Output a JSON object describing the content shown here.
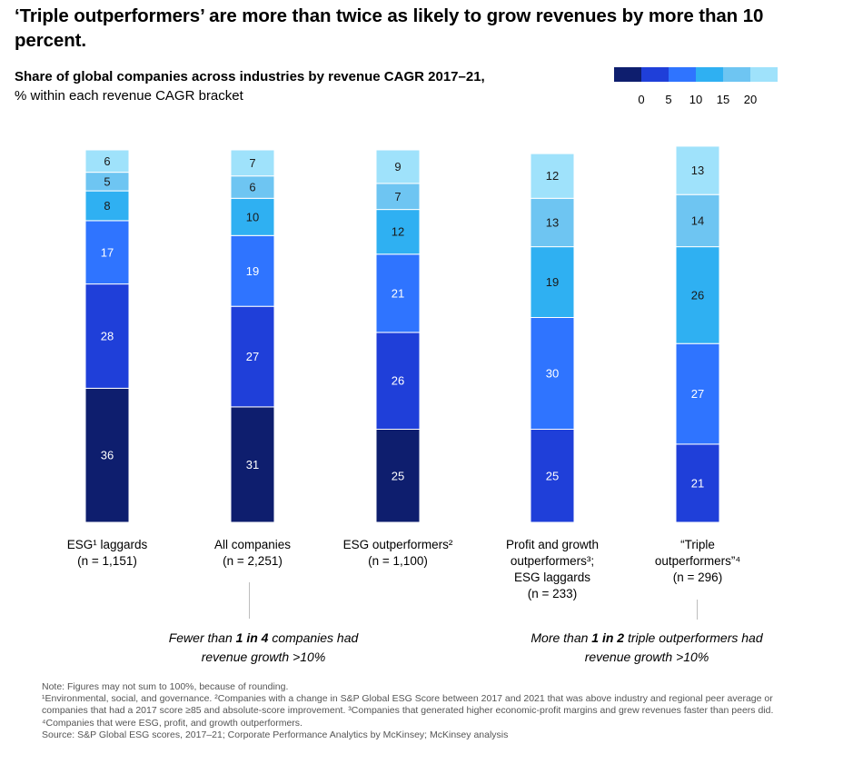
{
  "headline": "‘Triple outperformers’ are more than twice as likely to grow revenues by more than 10 percent.",
  "subtitle": {
    "bold": "Share of global companies across industries by revenue CAGR 2017–21,",
    "rest": " % within each revenue CAGR bracket"
  },
  "colors": {
    "legend": [
      "#0e1e6e",
      "#1f3fd9",
      "#2f74ff",
      "#2fb0f2",
      "#6ec5f2",
      "#9fe2fb"
    ],
    "segment_text_dark": "#1a1a1a",
    "segment_text_light": "#ffffff"
  },
  "legend": {
    "ticks": [
      "0",
      "5",
      "10",
      "15",
      "20"
    ]
  },
  "chart_data": {
    "type": "bar",
    "stacked": true,
    "orientation": "vertical",
    "title": "Share of global companies across industries by revenue CAGR 2017–21, % within each revenue CAGR bracket",
    "segment_order": "bottom-to-top by revenue CAGR bracket: <0, 0–5, 5–10, 10–15, 15–20, >20",
    "categories": [
      {
        "label": [
          "ESG¹ laggards",
          "(n = 1,151)"
        ],
        "values": [
          36,
          28,
          17,
          8,
          5,
          6
        ]
      },
      {
        "label": [
          "All companies",
          "(n = 2,251)"
        ],
        "values": [
          31,
          27,
          19,
          10,
          6,
          7
        ]
      },
      {
        "label": [
          "ESG outperformers²",
          "(n = 1,100)"
        ],
        "values": [
          25,
          26,
          21,
          12,
          7,
          9
        ]
      },
      {
        "label": [
          "Profit and growth",
          "outperformers³;",
          "ESG laggards",
          "(n = 233)"
        ],
        "values": [
          25,
          30,
          19,
          13,
          12
        ]
      },
      {
        "label": [
          "“Triple",
          "outperformers”⁴",
          "(n = 296)"
        ],
        "values": [
          21,
          27,
          26,
          14,
          13
        ]
      }
    ],
    "segment_colors": [
      [
        "#0e1e6e",
        "#1f3fd9",
        "#2f74ff",
        "#2fb0f2",
        "#6ec5f2",
        "#9fe2fb"
      ],
      [
        "#0e1e6e",
        "#1f3fd9",
        "#2f74ff",
        "#2fb0f2",
        "#6ec5f2",
        "#9fe2fb"
      ],
      [
        "#0e1e6e",
        "#1f3fd9",
        "#2f74ff",
        "#2fb0f2",
        "#6ec5f2",
        "#9fe2fb"
      ],
      [
        "#1f3fd9",
        "#2f74ff",
        "#2fb0f2",
        "#6ec5f2",
        "#9fe2fb"
      ],
      [
        "#1f3fd9",
        "#2f74ff",
        "#2fb0f2",
        "#6ec5f2",
        "#9fe2fb"
      ]
    ],
    "ylim": [
      0,
      100
    ],
    "grid": false
  },
  "callouts": [
    {
      "pre": "Fewer than ",
      "bold": "1 in 4",
      "post": " companies had",
      "line2": "revenue growth >10%"
    },
    {
      "pre": "More than ",
      "bold": "1 in 2",
      "post": " triple outperformers had",
      "line2": "revenue growth >10%"
    }
  ],
  "notes": {
    "note": "Note: Figures may not sum to 100%, because of rounding.",
    "footnotes": "¹Environmental, social, and governance. ²Companies with a change in S&P Global ESG Score between 2017 and 2021 that was above industry and regional peer average or companies that had a 2017 score ≥85 and absolute-score improvement. ³Companies that generated higher economic-profit margins and grew revenues faster than peers did. ⁴Companies that were ESG, profit, and growth outperformers.",
    "source": "Source: S&P Global ESG scores, 2017–21; Corporate Performance Analytics by McKinsey; McKinsey analysis"
  }
}
